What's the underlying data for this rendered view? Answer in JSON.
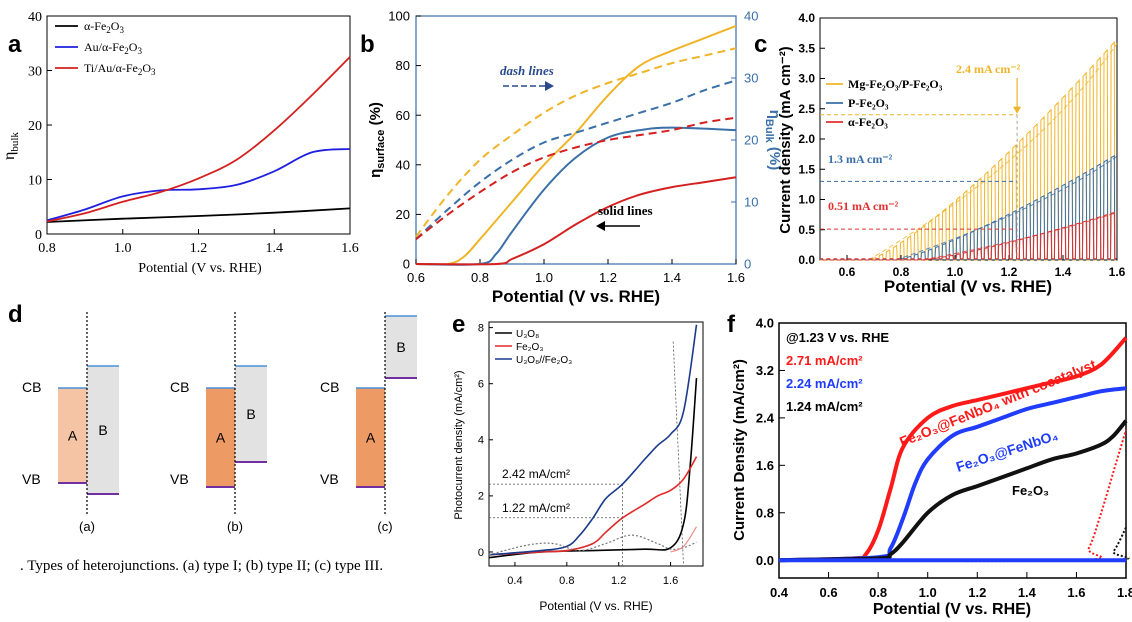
{
  "panels": {
    "a": {
      "label": "a",
      "ylabel": "η",
      "ylabel_sub": "bulk",
      "xlabel": "Potential (V vs. RHE)",
      "legend": [
        {
          "text": "α-Fe",
          "sub1": "2",
          "mid": "O",
          "sub2": "3",
          "color": "#000000"
        },
        {
          "text": "Au/α-Fe",
          "sub1": "2",
          "mid": "O",
          "sub2": "3",
          "color": "#2020e0"
        },
        {
          "text": "Ti/Au/α-Fe",
          "sub1": "2",
          "mid": "O",
          "sub2": "3",
          "color": "#d42020"
        }
      ],
      "xticks": [
        "0.8",
        "1.0",
        "1.2",
        "1.4",
        "1.6"
      ],
      "yticks": [
        "0",
        "10",
        "20",
        "30",
        "40"
      ]
    },
    "b": {
      "label": "b",
      "ylabel_left": "η",
      "ylabel_left_sub": "surface",
      "ylabel_left_unit": " (%)",
      "ylabel_right": "η",
      "ylabel_right_sub": "Bulk",
      "ylabel_right_unit": " (%)",
      "xlabel": "Potential (V vs. RHE)",
      "note_dash": "dash lines",
      "note_solid": "solid lines",
      "xticks": [
        "0.6",
        "0.8",
        "1.0",
        "1.2",
        "1.4",
        "1.6"
      ],
      "yticks_left": [
        "0",
        "20",
        "40",
        "60",
        "80",
        "100"
      ],
      "yticks_right": [
        "0",
        "10",
        "20",
        "30",
        "40"
      ]
    },
    "c": {
      "label": "c",
      "ylabel": "Current density (mA cm⁻²)",
      "xlabel": "Potential (V vs. RHE)",
      "legend": [
        "Mg-Fe₂O₃/P-Fe₂O₃",
        "P-Fe₂O₃",
        "α-Fe₂O₃"
      ],
      "ann": [
        "2.4 mA cm⁻²",
        "1.3 mA cm⁻²",
        "0.51 mA cm⁻²"
      ],
      "xticks": [
        "0.6",
        "0.8",
        "1.0",
        "1.2",
        "1.4",
        "1.6"
      ],
      "yticks": [
        "0.0",
        "0.5",
        "1.0",
        "1.5",
        "2.0",
        "2.5",
        "3.0",
        "3.5",
        "4.0"
      ]
    },
    "d": {
      "label": "d",
      "cb": "CB",
      "vb": "VB",
      "block_a": "A",
      "block_b": "B",
      "sublabels": [
        "(a)",
        "(b)",
        "(c)"
      ],
      "caption": ". Types of heterojunctions. (a) type I; (b) type II; (c) type III."
    },
    "e": {
      "label": "e",
      "ylabel": "Photocurrent density (mA/cm²)",
      "xlabel": "Potential (V vs. RHE)",
      "legend": [
        "U₃O₈",
        "Fe₂O₃",
        "U₃O₈//Fe₂O₃"
      ],
      "ann": [
        "2.42 mA/cm²",
        "1.22 mA/cm²"
      ],
      "xticks": [
        "0.4",
        "0.8",
        "1.2",
        "1.6"
      ],
      "yticks": [
        "0",
        "2",
        "4",
        "6",
        "8"
      ]
    },
    "f": {
      "label": "f",
      "ylabel": "Current Density (mA/cm²)",
      "xlabel": "Potential (V vs. RHE)",
      "header": "@1.23 V vs. RHE",
      "values": [
        "2.71 mA/cm²",
        "2.24 mA/cm²",
        "1.24 mA/cm²"
      ],
      "curve_labels": [
        "Fe₂O₃@FeNbO₄ with cocatalyst",
        "Fe₂O₃@FeNbO₄",
        "Fe₂O₃"
      ],
      "xticks": [
        "0.4",
        "0.6",
        "0.8",
        "1.0",
        "1.2",
        "1.4",
        "1.6",
        "1.8"
      ],
      "yticks": [
        "0.0",
        "0.8",
        "1.6",
        "2.4",
        "3.2",
        "4.0"
      ]
    }
  },
  "colors": {
    "black": "#000000",
    "blue_a": "#2020e0",
    "red": "#d42020",
    "orange": "#f0b428",
    "steel": "#3a6fa8",
    "f_red": "#ff1a1a",
    "f_blue": "#1f3cff",
    "band_a_light": "#f4c4a4",
    "band_a": "#ee9a64",
    "band_b": "#e2e2e2",
    "cb_line": "#4a90d9",
    "vb_line": "#7030a0"
  },
  "chart_data": [
    {
      "panel": "a",
      "type": "line",
      "xlabel": "Potential (V vs. RHE)",
      "ylabel": "η_bulk",
      "xlim": [
        0.8,
        1.6
      ],
      "ylim": [
        0,
        40
      ],
      "series": [
        {
          "name": "α-Fe2O3",
          "color": "#000000",
          "x": [
            0.8,
            1.0,
            1.2,
            1.4,
            1.6
          ],
          "y": [
            2.2,
            2.8,
            3.3,
            3.9,
            4.7
          ]
        },
        {
          "name": "Au/α-Fe2O3",
          "color": "#2020e0",
          "x": [
            0.8,
            0.9,
            1.0,
            1.1,
            1.2,
            1.3,
            1.4,
            1.5,
            1.6
          ],
          "y": [
            2.5,
            4.5,
            6.9,
            8.0,
            8.2,
            9.0,
            11.5,
            15.0,
            15.6
          ]
        },
        {
          "name": "Ti/Au/α-Fe2O3",
          "color": "#d42020",
          "x": [
            0.8,
            0.9,
            1.0,
            1.1,
            1.2,
            1.3,
            1.4,
            1.5,
            1.6
          ],
          "y": [
            2.3,
            3.8,
            5.9,
            7.7,
            10.2,
            13.6,
            19.0,
            25.5,
            32.5
          ]
        }
      ]
    },
    {
      "panel": "b",
      "type": "line",
      "xlabel": "Potential (V vs. RHE)",
      "ylabel": "η_surface (%)",
      "y2label": "η_Bulk (%)",
      "xlim": [
        0.6,
        1.6
      ],
      "ylim": [
        0,
        100
      ],
      "y2lim": [
        0,
        40
      ],
      "series": [
        {
          "style": "solid",
          "color": "#f0b428",
          "x": [
            0.6,
            0.7,
            0.75,
            0.8,
            0.9,
            1.0,
            1.1,
            1.2,
            1.3,
            1.4,
            1.5,
            1.6
          ],
          "y": [
            0,
            0,
            3,
            10,
            25,
            40,
            53,
            68,
            80,
            86,
            91,
            96
          ]
        },
        {
          "style": "solid",
          "color": "#3a6fa8",
          "x": [
            0.6,
            0.8,
            0.85,
            0.9,
            1.0,
            1.1,
            1.2,
            1.3,
            1.4,
            1.6
          ],
          "y": [
            0,
            0,
            4,
            13,
            30,
            43,
            51,
            54,
            55,
            54
          ]
        },
        {
          "style": "solid",
          "color": "#d42020",
          "x": [
            0.6,
            0.85,
            0.9,
            1.0,
            1.1,
            1.2,
            1.3,
            1.4,
            1.5,
            1.6
          ],
          "y": [
            0,
            0,
            2,
            8,
            16,
            23,
            28,
            31,
            33,
            35
          ]
        },
        {
          "style": "dash",
          "color": "#f0b428",
          "x": [
            0.6,
            0.7,
            0.8,
            0.9,
            1.0,
            1.1,
            1.2,
            1.3,
            1.4,
            1.5,
            1.6
          ],
          "y": [
            11,
            28,
            42,
            52,
            61,
            68,
            73,
            77,
            81,
            84,
            87
          ]
        },
        {
          "style": "dash",
          "color": "#3a6fa8",
          "x": [
            0.6,
            0.7,
            0.8,
            0.9,
            1.0,
            1.1,
            1.2,
            1.3,
            1.4,
            1.5,
            1.6
          ],
          "y": [
            10,
            22,
            33,
            42,
            49,
            53,
            57,
            61,
            65,
            70,
            74
          ]
        },
        {
          "style": "dash",
          "color": "#d42020",
          "x": [
            0.6,
            0.7,
            0.8,
            0.9,
            1.0,
            1.1,
            1.2,
            1.3,
            1.4,
            1.5,
            1.6
          ],
          "y": [
            10,
            20,
            29,
            37,
            43,
            47,
            50,
            52,
            54,
            57,
            59
          ]
        }
      ]
    },
    {
      "panel": "c",
      "type": "line",
      "xlabel": "Potential (V vs. RHE)",
      "ylabel": "Current density (mA cm-2)",
      "xlim": [
        0.5,
        1.6
      ],
      "ylim": [
        0,
        4
      ],
      "series": [
        {
          "name": "Mg-Fe2O3/P-Fe2O3",
          "color": "#f0b428",
          "onset": 0.68,
          "value_at_1_23": 2.4,
          "end": 3.65
        },
        {
          "name": "P-Fe2O3",
          "color": "#3a6fa8",
          "onset": 0.78,
          "value_at_1_23": 1.3,
          "end": 1.75
        },
        {
          "name": "α-Fe2O3",
          "color": "#e03030",
          "onset": 0.88,
          "value_at_1_23": 0.51,
          "end": 0.8
        }
      ]
    },
    {
      "panel": "e",
      "type": "line",
      "xlabel": "Potential (V vs. RHE)",
      "ylabel": "Photocurrent density (mA/cm2)",
      "xlim": [
        0.2,
        1.85
      ],
      "ylim": [
        -0.5,
        8.2
      ],
      "series": [
        {
          "name": "U3O8",
          "color": "#000000",
          "x": [
            0.2,
            0.6,
            1.0,
            1.4,
            1.6,
            1.7,
            1.75,
            1.8
          ],
          "y": [
            -0.2,
            0.0,
            0.05,
            0.1,
            0.15,
            1.0,
            3.0,
            6.2
          ]
        },
        {
          "name": "Fe2O3",
          "color": "#e02a2a",
          "x": [
            0.2,
            0.6,
            0.8,
            1.0,
            1.1,
            1.23,
            1.4,
            1.5,
            1.6,
            1.7,
            1.8
          ],
          "y": [
            -0.1,
            0.0,
            0.05,
            0.3,
            0.7,
            1.22,
            1.7,
            2.0,
            2.2,
            2.6,
            3.4
          ]
        },
        {
          "name": "U3O8//Fe2O3",
          "color": "#1a3a8c",
          "x": [
            0.2,
            0.6,
            0.8,
            0.9,
            1.0,
            1.1,
            1.23,
            1.4,
            1.5,
            1.6,
            1.7,
            1.8
          ],
          "y": [
            -0.1,
            0.05,
            0.2,
            0.6,
            1.2,
            1.9,
            2.42,
            3.3,
            3.8,
            4.2,
            5.0,
            8.1
          ]
        }
      ]
    },
    {
      "panel": "f",
      "type": "line",
      "xlabel": "Potential (V vs. RHE)",
      "ylabel": "Current Density (mA/cm2)",
      "xlim": [
        0.4,
        1.8
      ],
      "ylim": [
        -0.3,
        4.0
      ],
      "series": [
        {
          "name": "Fe2O3@FeNbO4 with cocatalyst",
          "color": "#ff1a1a",
          "x": [
            0.4,
            0.7,
            0.75,
            0.8,
            0.85,
            0.9,
            1.0,
            1.1,
            1.2,
            1.3,
            1.4,
            1.5,
            1.6,
            1.7,
            1.8
          ],
          "y": [
            0.0,
            0.03,
            0.1,
            0.5,
            1.2,
            1.9,
            2.4,
            2.6,
            2.7,
            2.8,
            2.9,
            3.0,
            3.1,
            3.3,
            3.75
          ]
        },
        {
          "name": "Fe2O3@FeNbO4",
          "color": "#1f3cff",
          "x": [
            0.4,
            0.8,
            0.85,
            0.9,
            0.95,
            1.0,
            1.1,
            1.2,
            1.3,
            1.4,
            1.5,
            1.6,
            1.7,
            1.8
          ],
          "y": [
            0.0,
            0.05,
            0.2,
            0.7,
            1.3,
            1.7,
            2.1,
            2.25,
            2.4,
            2.55,
            2.65,
            2.75,
            2.85,
            2.9
          ]
        },
        {
          "name": "Fe2O3",
          "color": "#111111",
          "x": [
            0.4,
            0.8,
            0.85,
            0.9,
            1.0,
            1.1,
            1.2,
            1.3,
            1.4,
            1.5,
            1.6,
            1.7,
            1.75,
            1.8
          ],
          "y": [
            0.0,
            0.03,
            0.1,
            0.3,
            0.8,
            1.1,
            1.25,
            1.4,
            1.55,
            1.7,
            1.8,
            1.95,
            2.1,
            2.35
          ]
        },
        {
          "name": "Fe2O3@FeNbO4 with cocatalyst (dark)",
          "color": "#ff1a1a",
          "style": "dotted",
          "x": [
            0.4,
            1.6,
            1.65,
            1.7,
            1.75,
            1.8
          ],
          "y": [
            0.0,
            0.0,
            0.2,
            0.8,
            1.5,
            2.2
          ]
        },
        {
          "name": "Fe2O3 (dark)",
          "color": "#111111",
          "style": "dotted",
          "x": [
            0.4,
            1.7,
            1.75,
            1.8
          ],
          "y": [
            0.0,
            0.0,
            0.15,
            0.55
          ]
        },
        {
          "name": "Fe2O3@FeNbO4 (dark)",
          "color": "#1f3cff",
          "x": [
            0.4,
            1.8
          ],
          "y": [
            0.0,
            0.0
          ]
        }
      ]
    }
  ]
}
